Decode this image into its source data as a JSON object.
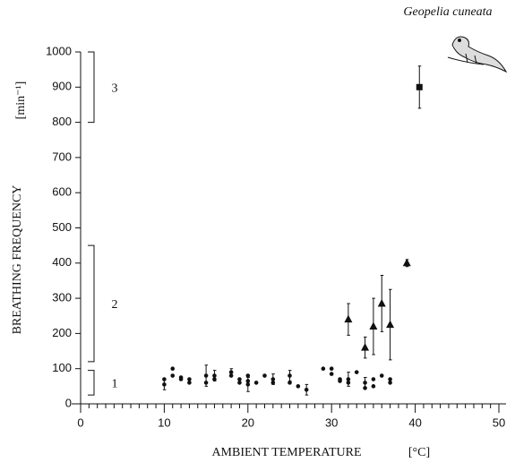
{
  "chart_data": {
    "type": "scatter",
    "title": "Geopelia cuneata",
    "xlabel": "AMBIENT TEMPERATURE",
    "xunit": "[°C]",
    "ylabel": "BREATHING FREQUENCY",
    "yunit": "[min⁻¹]",
    "xlim": [
      0,
      50
    ],
    "xticks": [
      0,
      10,
      20,
      30,
      40,
      50
    ],
    "ylim": [
      0,
      1000
    ],
    "yticks": [
      0,
      100,
      200,
      300,
      400,
      500,
      600,
      700,
      800,
      900,
      1000
    ],
    "ranges": [
      {
        "label": "1",
        "range": [
          25,
          95
        ]
      },
      {
        "label": "2",
        "range": [
          120,
          450
        ]
      },
      {
        "label": "3",
        "range": [
          800,
          1000
        ]
      }
    ],
    "series": [
      {
        "marker": "circle",
        "color": "#111111",
        "x": [
          10,
          10,
          11,
          11,
          12,
          12,
          13,
          13,
          15,
          15,
          16,
          16,
          18,
          18,
          19,
          19,
          20,
          20,
          20,
          21,
          22,
          23,
          23,
          25,
          25,
          26,
          27,
          29,
          30,
          30,
          31,
          31,
          32,
          32,
          33,
          34,
          34,
          35,
          35,
          36,
          37,
          37
        ],
        "values": [
          55,
          70,
          100,
          80,
          70,
          75,
          70,
          60,
          60,
          80,
          70,
          80,
          80,
          90,
          70,
          60,
          80,
          65,
          55,
          60,
          80,
          70,
          60,
          80,
          60,
          50,
          40,
          100,
          100,
          85,
          70,
          65,
          70,
          60,
          90,
          60,
          45,
          50,
          70,
          80,
          70,
          60
        ],
        "errors": [
          15,
          null,
          null,
          null,
          null,
          null,
          null,
          null,
          null,
          30,
          null,
          15,
          null,
          10,
          null,
          null,
          null,
          null,
          20,
          null,
          null,
          15,
          null,
          15,
          null,
          null,
          15,
          null,
          null,
          null,
          null,
          null,
          20,
          null,
          null,
          15,
          null,
          null,
          null,
          null,
          null,
          null
        ]
      },
      {
        "marker": "triangle",
        "color": "#111111",
        "x": [
          32,
          34,
          35,
          36,
          37,
          39
        ],
        "values": [
          240,
          160,
          220,
          285,
          225,
          400
        ],
        "errors": [
          45,
          30,
          80,
          80,
          100,
          10
        ]
      },
      {
        "marker": "square",
        "color": "#111111",
        "x": [
          40.5
        ],
        "values": [
          900
        ],
        "errors": [
          60
        ]
      }
    ]
  }
}
